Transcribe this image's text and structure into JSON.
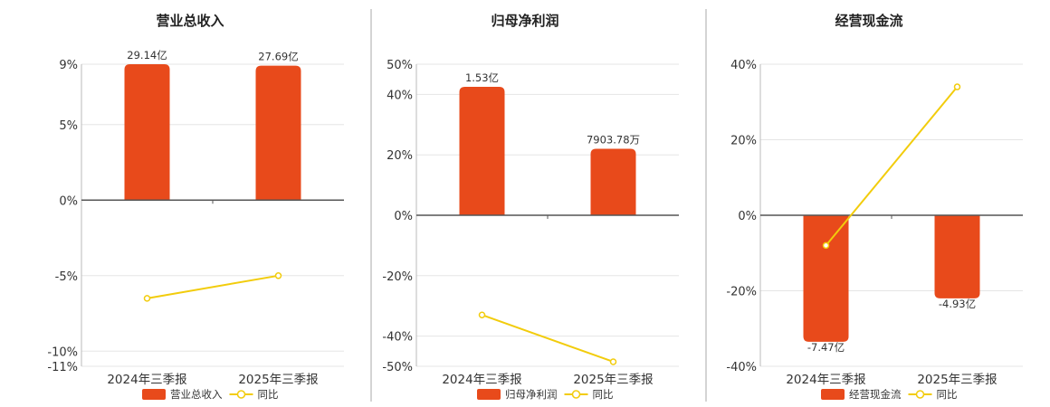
{
  "colors": {
    "bar": "#E84A1B",
    "line": "#F2CC0C",
    "grid": "#E5E5E5",
    "axis": "#555555",
    "divider": "#AAAAAA"
  },
  "legend": {
    "line_label": "同比"
  },
  "chart_data": [
    {
      "type": "bar",
      "title": "营业总收入",
      "categories": [
        "2024年三季报",
        "2025年三季报"
      ],
      "bar_labels": [
        "29.14亿",
        "27.69亿"
      ],
      "bar_values": [
        9.0,
        8.9
      ],
      "line_values": [
        -6.5,
        -5.0
      ],
      "yticks": [
        "9%",
        "5%",
        "0%",
        "-5%",
        "-10%",
        "-11%"
      ],
      "ytick_values": [
        9,
        5,
        0,
        -5,
        -10,
        -11
      ],
      "ylim": [
        -11,
        9
      ],
      "legend_bar": "营业总收入"
    },
    {
      "type": "bar",
      "title": "归母净利润",
      "categories": [
        "2024年三季报",
        "2025年三季报"
      ],
      "bar_labels": [
        "1.53亿",
        "7903.78万"
      ],
      "bar_values": [
        42.5,
        22.0
      ],
      "line_values": [
        -33.0,
        -48.5
      ],
      "yticks": [
        "50%",
        "40%",
        "20%",
        "0%",
        "-20%",
        "-40%",
        "-50%"
      ],
      "ytick_values": [
        50,
        40,
        20,
        0,
        -20,
        -40,
        -50
      ],
      "ylim": [
        -50,
        50
      ],
      "legend_bar": "归母净利润"
    },
    {
      "type": "bar",
      "title": "经营现金流",
      "categories": [
        "2024年三季报",
        "2025年三季报"
      ],
      "bar_labels": [
        "-7.47亿",
        "-4.93亿"
      ],
      "bar_values": [
        -33.5,
        -22.0
      ],
      "line_values": [
        -8.0,
        34.0
      ],
      "yticks": [
        "40%",
        "20%",
        "0%",
        "-20%",
        "-40%"
      ],
      "ytick_values": [
        40,
        20,
        0,
        -20,
        -40
      ],
      "ylim": [
        -40,
        40
      ],
      "legend_bar": "经营现金流"
    }
  ]
}
